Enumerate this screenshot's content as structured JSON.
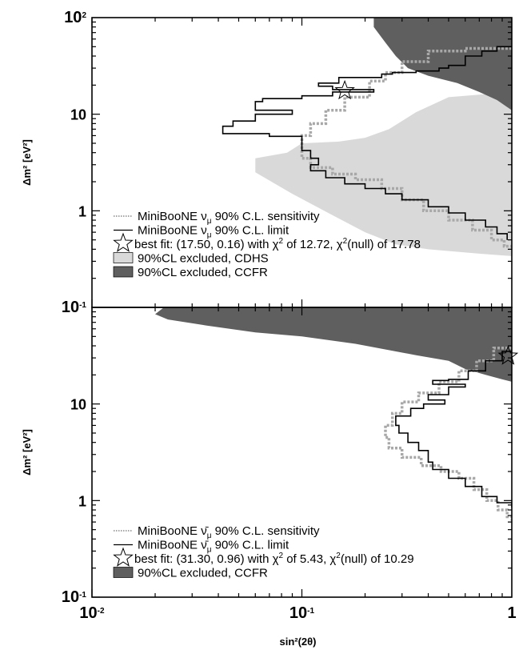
{
  "chart_data": [
    {
      "type": "line",
      "panel": "top",
      "x_scale": "log",
      "y_scale": "log",
      "xlim": [
        0.01,
        1
      ],
      "ylim": [
        0.1,
        100
      ],
      "ylabel": "Δm² [eV²]",
      "y_ticks": [
        {
          "value": 100,
          "label": "10",
          "sup": "2"
        },
        {
          "value": 10,
          "label": "10",
          "sup": ""
        },
        {
          "value": 1,
          "label": "1",
          "sup": ""
        },
        {
          "value": 0.1,
          "label": "10",
          "sup": "-1"
        }
      ],
      "legend_position": "bottom-left",
      "series": [
        {
          "name": "sensitivity",
          "style": "dotted-gray",
          "points": [
            [
              1.0,
              48
            ],
            [
              0.6,
              45
            ],
            [
              0.4,
              35
            ],
            [
              0.3,
              27
            ],
            [
              0.25,
              22
            ],
            [
              0.21,
              15
            ],
            [
              0.16,
              11
            ],
            [
              0.13,
              8
            ],
            [
              0.11,
              6
            ],
            [
              0.1,
              4.5
            ],
            [
              0.1,
              3.5
            ],
            [
              0.11,
              2.8
            ],
            [
              0.14,
              2.4
            ],
            [
              0.18,
              2.1
            ],
            [
              0.24,
              1.7
            ],
            [
              0.3,
              1.3
            ],
            [
              0.38,
              1.0
            ],
            [
              0.5,
              0.8
            ],
            [
              0.65,
              0.63
            ],
            [
              0.8,
              0.5
            ],
            [
              0.92,
              0.43
            ],
            [
              1.0,
              0.4
            ]
          ]
        },
        {
          "name": "limit",
          "style": "solid-black",
          "points": [
            [
              1.0,
              50
            ],
            [
              0.93,
              50
            ],
            [
              0.85,
              45
            ],
            [
              0.72,
              40
            ],
            [
              0.6,
              32
            ],
            [
              0.5,
              30
            ],
            [
              0.45,
              28
            ],
            [
              0.35,
              27
            ],
            [
              0.27,
              26
            ],
            [
              0.24,
              24
            ],
            [
              0.15,
              21
            ],
            [
              0.12,
              19.5
            ],
            [
              0.14,
              18
            ],
            [
              0.22,
              17
            ],
            [
              0.14,
              15.5
            ],
            [
              0.1,
              14.5
            ],
            [
              0.065,
              13.5
            ],
            [
              0.06,
              11
            ],
            [
              0.09,
              10
            ],
            [
              0.06,
              8.5
            ],
            [
              0.047,
              7.5
            ],
            [
              0.042,
              6.3
            ],
            [
              0.07,
              5.9
            ],
            [
              0.1,
              5.2
            ],
            [
              0.1,
              4.2
            ],
            [
              0.11,
              3.5
            ],
            [
              0.12,
              3.0
            ],
            [
              0.11,
              2.6
            ],
            [
              0.13,
              2.2
            ],
            [
              0.16,
              1.9
            ],
            [
              0.2,
              1.7
            ],
            [
              0.25,
              1.5
            ],
            [
              0.3,
              1.3
            ],
            [
              0.4,
              1.1
            ],
            [
              0.5,
              0.95
            ],
            [
              0.6,
              0.8
            ],
            [
              0.75,
              0.68
            ],
            [
              0.85,
              0.58
            ],
            [
              0.95,
              0.5
            ]
          ]
        },
        {
          "name": "CDHS",
          "style": "fill-lightgray",
          "points": [
            [
              1.0,
              17
            ],
            [
              0.5,
              15
            ],
            [
              0.35,
              10.5
            ],
            [
              0.26,
              7
            ],
            [
              0.2,
              5.7
            ],
            [
              0.15,
              5.2
            ],
            [
              0.1,
              5
            ],
            [
              0.085,
              4
            ],
            [
              0.06,
              3.5
            ],
            [
              0.06,
              2.5
            ],
            [
              0.09,
              1.5
            ],
            [
              0.14,
              0.9
            ],
            [
              0.2,
              0.6
            ],
            [
              0.28,
              0.45
            ],
            [
              0.4,
              0.4
            ],
            [
              0.7,
              0.36
            ],
            [
              1.0,
              0.34
            ]
          ]
        },
        {
          "name": "CCFR",
          "style": "fill-darkgray",
          "points": [
            [
              0.22,
              100
            ],
            [
              0.22,
              80
            ],
            [
              0.25,
              55
            ],
            [
              0.28,
              40
            ],
            [
              0.32,
              30
            ],
            [
              0.4,
              25
            ],
            [
              0.55,
              21
            ],
            [
              0.7,
              17
            ],
            [
              0.85,
              14
            ],
            [
              1.0,
              11
            ]
          ]
        }
      ],
      "best_fit_point": [
        0.16,
        17.5
      ],
      "legend": [
        {
          "text": "MiniBooNE ν",
          "sub": "μ",
          "rest": " 90% C.L. sensitivity",
          "sym": "dotted"
        },
        {
          "text": "MiniBooNE ν",
          "sub": "μ",
          "rest": " 90% C.L. limit",
          "sym": "solid"
        },
        {
          "text": "best fit: (17.50, 0.16) with χ",
          "sup": "2",
          "rest": " of  12.72, χ",
          "sup2": "2",
          "rest2": "(null) of 17.78",
          "sym": "star"
        },
        {
          "text": "90%CL excluded, CDHS",
          "sym": "light"
        },
        {
          "text": "90%CL excluded, CCFR",
          "sym": "dark"
        }
      ]
    },
    {
      "type": "line",
      "panel": "bottom",
      "x_scale": "log",
      "y_scale": "log",
      "xlim": [
        0.01,
        1
      ],
      "ylim": [
        0.1,
        100
      ],
      "xlabel": "sin²(2θ)",
      "ylabel": "Δm² [eV²]",
      "x_ticks": [
        {
          "value": 0.01,
          "label": "10",
          "sup": "-2"
        },
        {
          "value": 0.1,
          "label": "10",
          "sup": "-1"
        },
        {
          "value": 1,
          "label": "1",
          "sup": ""
        }
      ],
      "y_ticks": [
        {
          "value": 10,
          "label": "10",
          "sup": ""
        },
        {
          "value": 1,
          "label": "1",
          "sup": ""
        },
        {
          "value": 0.1,
          "label": "10",
          "sup": "-1"
        }
      ],
      "legend_position": "bottom-left",
      "series": [
        {
          "name": "sensitivity",
          "style": "dotted-gray",
          "points": [
            [
              1.0,
              38
            ],
            [
              0.82,
              28
            ],
            [
              0.68,
              22
            ],
            [
              0.56,
              17
            ],
            [
              0.45,
              13
            ],
            [
              0.36,
              10.5
            ],
            [
              0.3,
              8
            ],
            [
              0.27,
              6
            ],
            [
              0.25,
              4.5
            ],
            [
              0.26,
              3.5
            ],
            [
              0.3,
              2.8
            ],
            [
              0.37,
              2.3
            ],
            [
              0.46,
              2.0
            ],
            [
              0.56,
              1.7
            ],
            [
              0.66,
              1.3
            ],
            [
              0.76,
              1.0
            ],
            [
              0.86,
              0.8
            ],
            [
              0.95,
              0.68
            ],
            [
              1.0,
              0.62
            ]
          ]
        },
        {
          "name": "limit",
          "style": "solid-black",
          "points": [
            [
              1.0,
              35
            ],
            [
              0.9,
              28
            ],
            [
              0.75,
              22
            ],
            [
              0.62,
              18
            ],
            [
              0.5,
              17.5
            ],
            [
              0.42,
              16
            ],
            [
              0.6,
              15
            ],
            [
              0.5,
              12.5
            ],
            [
              0.4,
              11
            ],
            [
              0.48,
              10
            ],
            [
              0.38,
              9
            ],
            [
              0.33,
              7.5
            ],
            [
              0.28,
              6
            ],
            [
              0.29,
              5
            ],
            [
              0.32,
              4
            ],
            [
              0.36,
              3.3
            ],
            [
              0.4,
              2.5
            ],
            [
              0.42,
              2.1
            ],
            [
              0.5,
              1.7
            ],
            [
              0.6,
              1.4
            ],
            [
              0.72,
              1.1
            ],
            [
              0.85,
              0.95
            ],
            [
              1.0,
              0.85
            ]
          ]
        },
        {
          "name": "CCFR",
          "style": "fill-darkgray",
          "points": [
            [
              0.022,
              100
            ],
            [
              0.02,
              85
            ],
            [
              0.023,
              75
            ],
            [
              0.035,
              65
            ],
            [
              0.06,
              55
            ],
            [
              0.1,
              50
            ],
            [
              0.18,
              42
            ],
            [
              0.35,
              32
            ],
            [
              0.5,
              28
            ],
            [
              0.6,
              23
            ],
            [
              0.75,
              20
            ],
            [
              0.9,
              18
            ],
            [
              1.0,
              17
            ]
          ]
        }
      ],
      "best_fit_point": [
        0.96,
        31.3
      ],
      "legend": [
        {
          "text": "MiniBooNE ν̄",
          "sub": "μ",
          "rest": " 90% C.L. sensitivity",
          "sym": "dotted"
        },
        {
          "text": "MiniBooNE ν̄",
          "sub": "μ",
          "rest": " 90% C.L. limit",
          "sym": "solid"
        },
        {
          "text": "best fit: (31.30, 0.96) with χ",
          "sup": "2",
          "rest": " of  5.43, χ",
          "sup2": "2",
          "rest2": "(null) of 10.29",
          "sym": "star"
        },
        {
          "text": " 90%CL excluded, CCFR",
          "sym": "dark"
        }
      ]
    }
  ],
  "colors": {
    "light_fill": "#d9d9d9",
    "dark_fill": "#5f5f5f",
    "dotted": "#a8a8a8",
    "limit": "#000000"
  }
}
